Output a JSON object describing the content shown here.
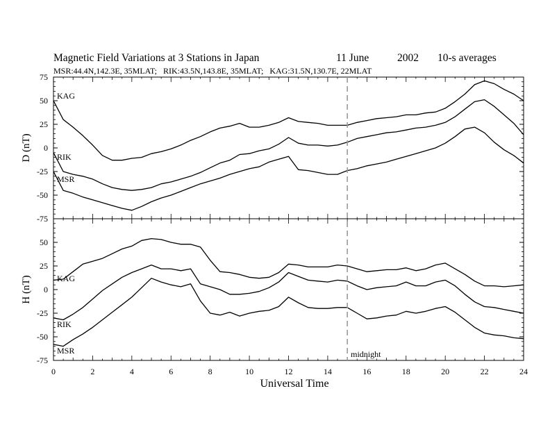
{
  "header": {
    "title": "Magnetic Field Variations at 3 Stations in Japan",
    "date": "11 June",
    "year": "2002",
    "averaging": "10-s averages",
    "stations_line": "MSR:44.4N,142.3E, 35MLAT;   RIK:43.5N,143.8E, 35MLAT;   KAG:31.5N,130.7E, 22MLAT"
  },
  "chart_data": [
    {
      "type": "line",
      "panel": "top",
      "ylabel": "D (nT)",
      "ylim": [
        -75,
        75
      ],
      "yticks": [
        -75,
        -50,
        -25,
        0,
        25,
        50,
        75
      ],
      "xlim": [
        0,
        24
      ],
      "grid": false,
      "series": [
        {
          "name": "KAG",
          "x": [
            0,
            0.5,
            1,
            1.5,
            2,
            2.5,
            3,
            3.5,
            4,
            4.5,
            5,
            5.5,
            6,
            6.5,
            7,
            7.5,
            8,
            8.5,
            9,
            9.5,
            10,
            10.5,
            11,
            11.5,
            12,
            12.5,
            13,
            13.5,
            14,
            14.5,
            15,
            15.5,
            16,
            16.5,
            17,
            17.5,
            18,
            18.5,
            19,
            19.5,
            20,
            20.5,
            21,
            21.5,
            22,
            22.5,
            23,
            23.5,
            24
          ],
          "y": [
            50,
            30,
            22,
            13,
            3,
            -8,
            -13,
            -13,
            -11,
            -10,
            -6,
            -4,
            -1,
            3,
            8,
            12,
            17,
            21,
            23,
            26,
            22,
            22,
            24,
            27,
            32,
            28,
            27,
            26,
            24,
            24,
            24,
            27,
            29,
            31,
            32,
            33,
            35,
            35,
            37,
            38,
            42,
            49,
            57,
            67,
            71,
            68,
            62,
            57,
            50
          ]
        },
        {
          "name": "RIK",
          "x": [
            0,
            0.5,
            1,
            1.5,
            2,
            2.5,
            3,
            3.5,
            4,
            4.5,
            5,
            5.5,
            6,
            6.5,
            7,
            7.5,
            8,
            8.5,
            9,
            9.5,
            10,
            10.5,
            11,
            11.5,
            12,
            12.5,
            13,
            13.5,
            14,
            14.5,
            15,
            15.5,
            16,
            16.5,
            17,
            17.5,
            18,
            18.5,
            19,
            19.5,
            20,
            20.5,
            21,
            21.5,
            22,
            22.5,
            23,
            23.5,
            24
          ],
          "y": [
            -5,
            -25,
            -28,
            -30,
            -33,
            -38,
            -42,
            -44,
            -45,
            -44,
            -42,
            -38,
            -36,
            -33,
            -30,
            -26,
            -21,
            -16,
            -13,
            -7,
            -6,
            -3,
            -1,
            4,
            11,
            5,
            3,
            3,
            2,
            3,
            6,
            10,
            12,
            14,
            16,
            17,
            19,
            21,
            22,
            24,
            27,
            33,
            41,
            49,
            51,
            44,
            35,
            26,
            14
          ]
        },
        {
          "name": "MSR",
          "x": [
            0,
            0.5,
            1,
            1.5,
            2,
            2.5,
            3,
            3.5,
            4,
            4.5,
            5,
            5.5,
            6,
            6.5,
            7,
            7.5,
            8,
            8.5,
            9,
            9.5,
            10,
            10.5,
            11,
            11.5,
            12,
            12.5,
            13,
            13.5,
            14,
            14.5,
            15,
            15.5,
            16,
            16.5,
            17,
            17.5,
            18,
            18.5,
            19,
            19.5,
            20,
            20.5,
            21,
            21.5,
            22,
            22.5,
            23,
            23.5,
            24
          ],
          "y": [
            -25,
            -45,
            -48,
            -52,
            -55,
            -58,
            -61,
            -64,
            -66,
            -62,
            -57,
            -53,
            -50,
            -46,
            -42,
            -38,
            -35,
            -32,
            -28,
            -25,
            -22,
            -20,
            -15,
            -12,
            -9,
            -23,
            -24,
            -26,
            -28,
            -28,
            -24,
            -22,
            -19,
            -17,
            -15,
            -12,
            -9,
            -6,
            -3,
            0,
            5,
            12,
            20,
            22,
            16,
            6,
            -2,
            -8,
            -16
          ]
        }
      ],
      "labels": [
        "KAG",
        "RIK",
        "MSR"
      ]
    },
    {
      "type": "line",
      "panel": "bottom",
      "ylabel": "H (nT)",
      "ylim": [
        -75,
        75
      ],
      "yticks": [
        -75,
        -50,
        -25,
        0,
        25,
        50
      ],
      "xlim": [
        0,
        24
      ],
      "xlabel": "Universal Time",
      "xticks": [
        0,
        2,
        4,
        6,
        8,
        10,
        12,
        14,
        16,
        18,
        20,
        22,
        24
      ],
      "grid": false,
      "series": [
        {
          "name": "KAG",
          "x": [
            0,
            0.5,
            1,
            1.5,
            2,
            2.5,
            3,
            3.5,
            4,
            4.5,
            5,
            5.5,
            6,
            6.5,
            7,
            7.5,
            8,
            8.5,
            9,
            9.5,
            10,
            10.5,
            11,
            11.5,
            12,
            12.5,
            13,
            13.5,
            14,
            14.5,
            15,
            15.5,
            16,
            16.5,
            17,
            17.5,
            18,
            18.5,
            19,
            19.5,
            20,
            20.5,
            21,
            21.5,
            22,
            22.5,
            23,
            23.5,
            24
          ],
          "y": [
            10,
            11,
            19,
            27,
            30,
            33,
            38,
            43,
            46,
            52,
            54,
            53,
            50,
            48,
            48,
            45,
            31,
            19,
            18,
            16,
            13,
            12,
            13,
            18,
            27,
            26,
            24,
            24,
            24,
            26,
            25,
            22,
            19,
            20,
            21,
            21,
            23,
            20,
            22,
            26,
            28,
            22,
            16,
            9,
            4,
            4,
            3,
            4,
            5
          ]
        },
        {
          "name": "RIK",
          "x": [
            0,
            0.5,
            1,
            1.5,
            2,
            2.5,
            3,
            3.5,
            4,
            4.5,
            5,
            5.5,
            6,
            6.5,
            7,
            7.5,
            8,
            8.5,
            9,
            9.5,
            10,
            10.5,
            11,
            11.5,
            12,
            12.5,
            13,
            13.5,
            14,
            14.5,
            15,
            15.5,
            16,
            16.5,
            17,
            17.5,
            18,
            18.5,
            19,
            19.5,
            20,
            20.5,
            21,
            21.5,
            22,
            22.5,
            23,
            23.5,
            24
          ],
          "y": [
            -30,
            -32,
            -26,
            -19,
            -10,
            -1,
            6,
            13,
            18,
            22,
            26,
            22,
            22,
            20,
            22,
            6,
            3,
            0,
            -5,
            -5,
            -4,
            -2,
            2,
            8,
            18,
            14,
            10,
            9,
            8,
            10,
            9,
            4,
            0,
            2,
            3,
            4,
            8,
            4,
            4,
            8,
            10,
            4,
            -5,
            -13,
            -18,
            -19,
            -21,
            -23,
            -25
          ]
        },
        {
          "name": "MSR",
          "x": [
            0,
            0.5,
            1,
            1.5,
            2,
            2.5,
            3,
            3.5,
            4,
            4.5,
            5,
            5.5,
            6,
            6.5,
            7,
            7.5,
            8,
            8.5,
            9,
            9.5,
            10,
            10.5,
            11,
            11.5,
            12,
            12.5,
            13,
            13.5,
            14,
            14.5,
            15,
            15.5,
            16,
            16.5,
            17,
            17.5,
            18,
            18.5,
            19,
            19.5,
            20,
            20.5,
            21,
            21.5,
            22,
            22.5,
            23,
            23.5,
            24
          ],
          "y": [
            -58,
            -60,
            -53,
            -47,
            -40,
            -32,
            -24,
            -16,
            -8,
            2,
            12,
            8,
            5,
            3,
            6,
            -12,
            -25,
            -27,
            -24,
            -28,
            -25,
            -23,
            -22,
            -18,
            -8,
            -14,
            -19,
            -20,
            -20,
            -19,
            -19,
            -25,
            -31,
            -30,
            -28,
            -27,
            -23,
            -25,
            -23,
            -20,
            -18,
            -24,
            -32,
            -40,
            -46,
            -48,
            -49,
            -51,
            -52
          ]
        }
      ],
      "labels": [
        "KAG",
        "RIK",
        "MSR"
      ]
    }
  ],
  "annotation": {
    "marker_ut": 15,
    "marker_label": "midnight"
  }
}
